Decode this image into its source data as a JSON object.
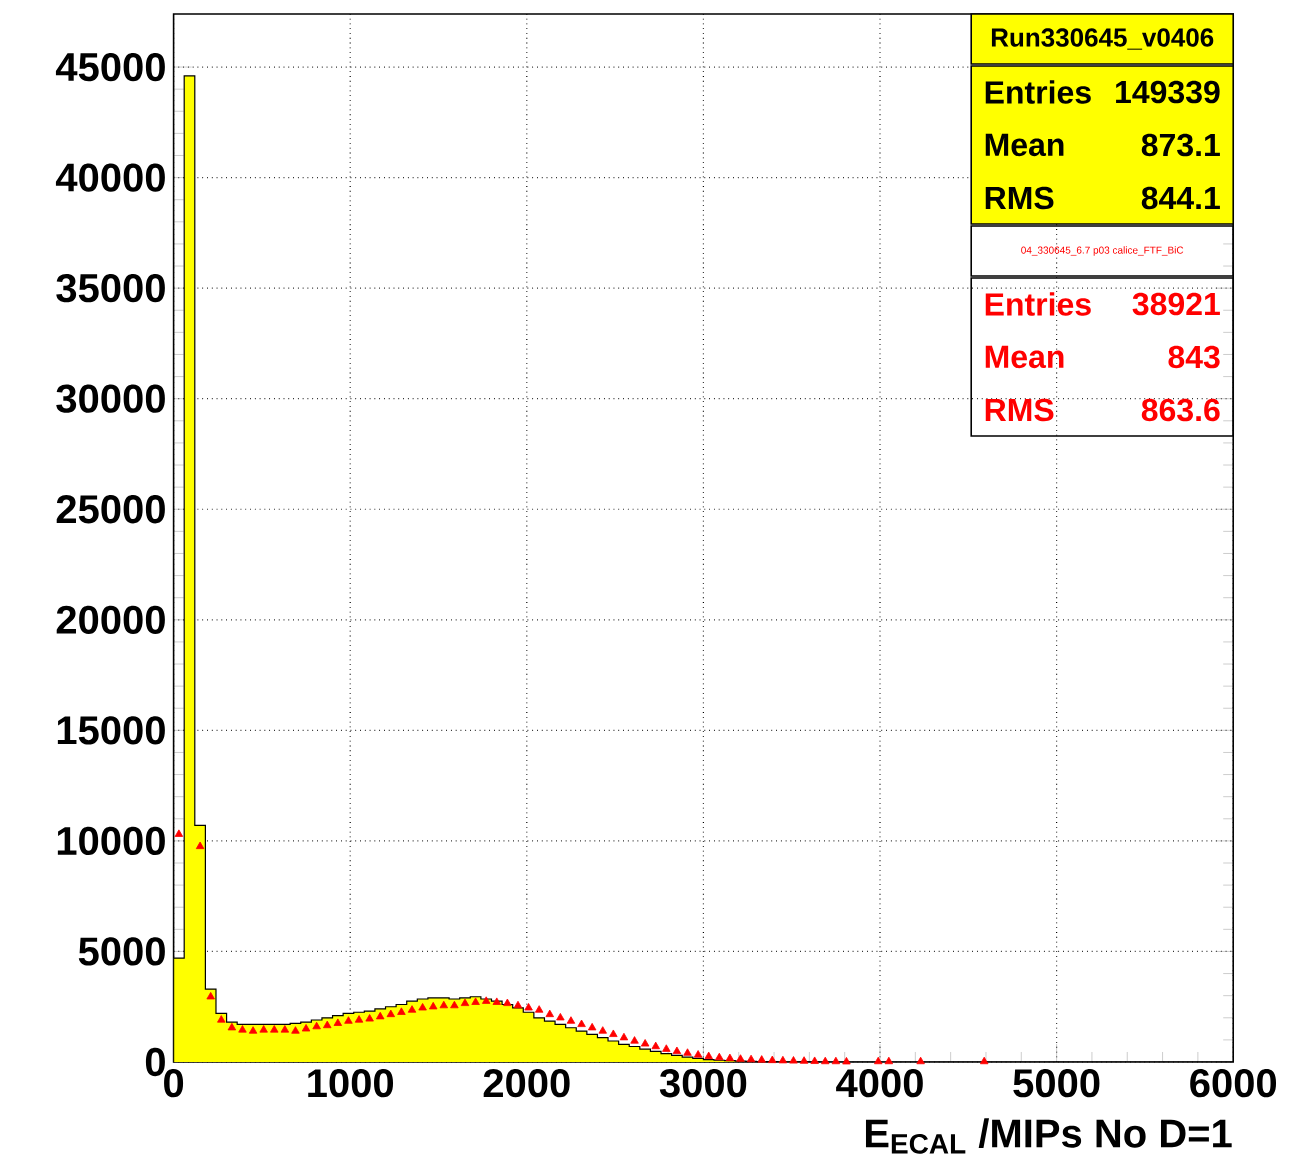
{
  "chart_data": {
    "type": "histogram",
    "xlabel": "E$_{ECAL}$ /MIPs No D=1",
    "bins": [
      0,
      60,
      120,
      180,
      240,
      300,
      360,
      420,
      480,
      540,
      600,
      660,
      720,
      780,
      840,
      900,
      960,
      1020,
      1080,
      1140,
      1200,
      1260,
      1320,
      1380,
      1440,
      1500,
      1560,
      1620,
      1680,
      1740,
      1800,
      1860,
      1920,
      1980,
      2040,
      2100,
      2160,
      2220,
      2280,
      2340,
      2400,
      2460,
      2520,
      2580,
      2640,
      2700,
      2760,
      2820,
      2880,
      2940,
      3000,
      3060,
      3120,
      3180,
      3240,
      3300,
      3360,
      3420,
      3480,
      3540,
      3600,
      3660,
      3720,
      3780,
      3840,
      3900,
      3960,
      4020,
      4080,
      4140,
      4200,
      4260,
      4320,
      4380,
      4440,
      4500,
      4560,
      4620,
      4680,
      4740,
      4800,
      4860,
      4920,
      4980,
      5040,
      5100,
      5160,
      5220,
      5280,
      5340,
      5400,
      5460,
      5520,
      5580,
      5640,
      5700,
      5760,
      5820,
      5880,
      5940,
      6000
    ],
    "series": [
      {
        "name": "Run330645_v0406",
        "color": "#ffff00",
        "values": [
          4700,
          44600,
          10700,
          3300,
          2200,
          1800,
          1700,
          1700,
          1700,
          1700,
          1700,
          1750,
          1800,
          1900,
          2000,
          2100,
          2200,
          2250,
          2300,
          2400,
          2500,
          2600,
          2750,
          2850,
          2900,
          2900,
          2850,
          2900,
          2950,
          2850,
          2750,
          2600,
          2450,
          2250,
          2000,
          1850,
          1700,
          1550,
          1400,
          1250,
          1100,
          950,
          800,
          700,
          580,
          480,
          380,
          300,
          220,
          160,
          110,
          80,
          60,
          40,
          30,
          20,
          15,
          10,
          8,
          5,
          3,
          0,
          0,
          0,
          0,
          0,
          0,
          0,
          0,
          0,
          0,
          0,
          0,
          0,
          0,
          0,
          0,
          0,
          0,
          0,
          0,
          0,
          0,
          0,
          0,
          0,
          0,
          0,
          0,
          0,
          0,
          0,
          0,
          0,
          0,
          0,
          0,
          0,
          0,
          0
        ]
      },
      {
        "name": "04_330645_6.7 p03 calice_FTF_BiC",
        "type": "scatter",
        "color": "#ff0000",
        "x": [
          30,
          150,
          210,
          270,
          330,
          390,
          450,
          510,
          570,
          630,
          690,
          750,
          810,
          870,
          930,
          990,
          1050,
          1110,
          1170,
          1230,
          1290,
          1350,
          1410,
          1470,
          1530,
          1590,
          1650,
          1710,
          1770,
          1830,
          1890,
          1950,
          2010,
          2070,
          2130,
          2190,
          2250,
          2310,
          2370,
          2430,
          2490,
          2550,
          2610,
          2670,
          2730,
          2790,
          2850,
          2910,
          2970,
          3030,
          3090,
          3150,
          3210,
          3270,
          3330,
          3390,
          3450,
          3510,
          3570,
          3630,
          3690,
          3750,
          3810,
          3990,
          4050,
          4230,
          4590
        ],
        "values": [
          10300,
          9750,
          2950,
          1900,
          1550,
          1450,
          1400,
          1450,
          1450,
          1450,
          1400,
          1500,
          1600,
          1650,
          1750,
          1850,
          1900,
          1950,
          2050,
          2150,
          2250,
          2350,
          2450,
          2500,
          2550,
          2550,
          2650,
          2700,
          2750,
          2700,
          2650,
          2550,
          2450,
          2350,
          2150,
          2000,
          1850,
          1700,
          1550,
          1400,
          1250,
          1100,
          950,
          820,
          700,
          580,
          480,
          400,
          320,
          250,
          200,
          160,
          130,
          110,
          90,
          70,
          60,
          50,
          40,
          30,
          20,
          20,
          10,
          20,
          20,
          20,
          20
        ]
      }
    ],
    "annotations": [
      "Entries",
      "149339",
      "Mean",
      "873.1",
      "RMS",
      "844.1",
      "Entries",
      "38921",
      "Mean",
      "843",
      "RMS",
      "863.6"
    ],
    "xlim": [
      0,
      6000
    ],
    "ylim": [
      0,
      47400
    ],
    "xticks": [
      0,
      1000,
      2000,
      3000,
      4000,
      5000,
      6000
    ],
    "yticks": [
      0,
      5000,
      10000,
      15000,
      20000,
      25000,
      30000,
      35000,
      40000,
      45000
    ],
    "grid": true,
    "legend": "top right",
    "marker": "triangle"
  }
}
